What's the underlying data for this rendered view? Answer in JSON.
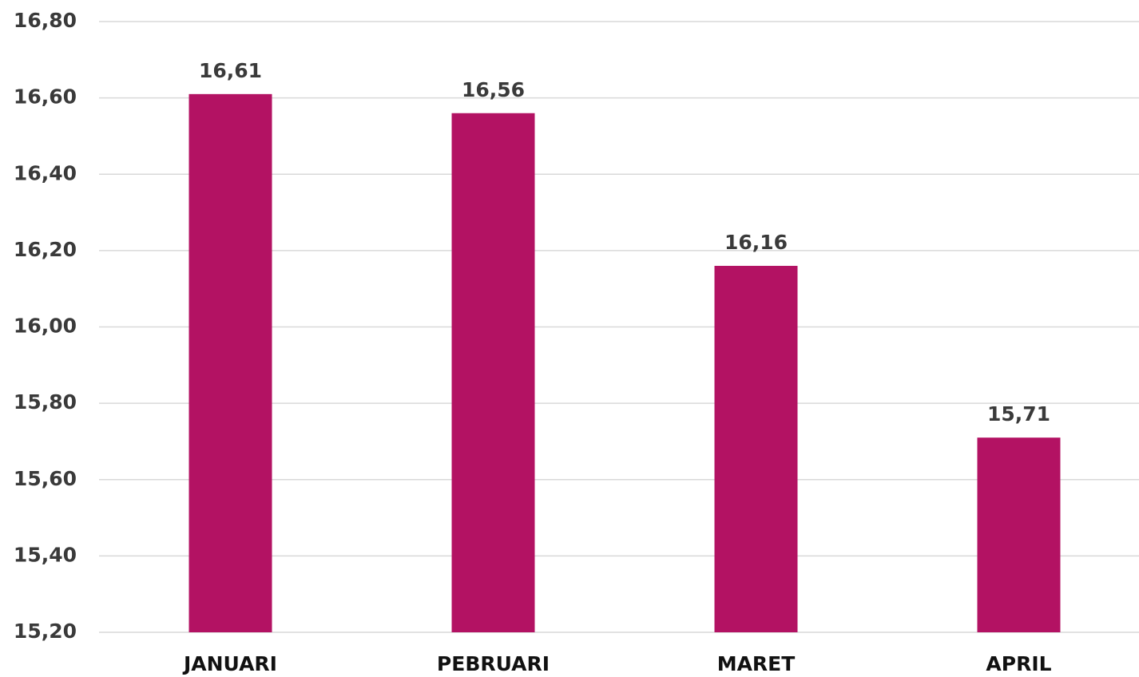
{
  "chart_data": {
    "type": "bar",
    "categories": [
      "JANUARI",
      "PEBRUARI",
      "MARET",
      "APRIL"
    ],
    "values": [
      16.61,
      16.56,
      16.16,
      15.71
    ],
    "value_labels": [
      "16,61",
      "16,56",
      "16,16",
      "15,71"
    ],
    "color": "#b31263",
    "ylim": [
      15.2,
      16.8
    ],
    "yticks": [
      {
        "value": 15.2,
        "label": "15,20"
      },
      {
        "value": 15.4,
        "label": "15,40"
      },
      {
        "value": 15.6,
        "label": "15,60"
      },
      {
        "value": 15.8,
        "label": "15,80"
      },
      {
        "value": 16.0,
        "label": "16,00"
      },
      {
        "value": 16.2,
        "label": "16,20"
      },
      {
        "value": 16.4,
        "label": "16,40"
      },
      {
        "value": 16.6,
        "label": "16,60"
      },
      {
        "value": 16.8,
        "label": "16,80"
      }
    ],
    "grid": true
  }
}
